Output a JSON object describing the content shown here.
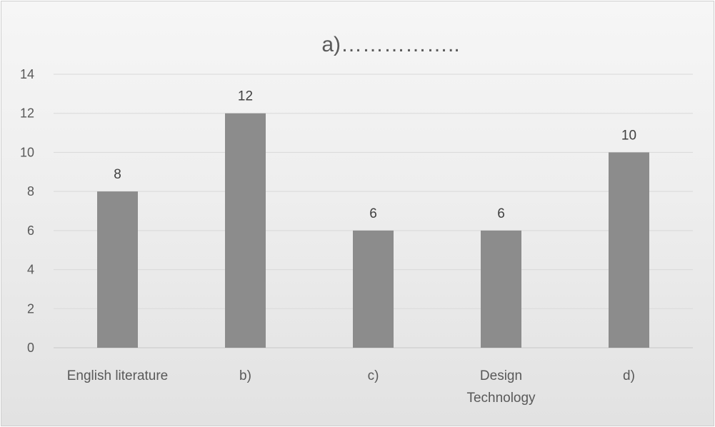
{
  "chart_data": {
    "type": "bar",
    "title": "a)……………..",
    "categories": [
      [
        "English literature"
      ],
      [
        "b)"
      ],
      [
        "c)"
      ],
      [
        "Design",
        "Technology"
      ],
      [
        "d)"
      ]
    ],
    "values": [
      8,
      12,
      6,
      6,
      10
    ],
    "data_labels": [
      "8",
      "12",
      "6",
      "6",
      "10"
    ],
    "ylim": [
      0,
      14
    ],
    "yticks": [
      0,
      2,
      4,
      6,
      8,
      10,
      12,
      14
    ],
    "xlabel": "",
    "ylabel": "",
    "grid": true,
    "legend": "none",
    "bar_color": "#8c8c8c"
  }
}
